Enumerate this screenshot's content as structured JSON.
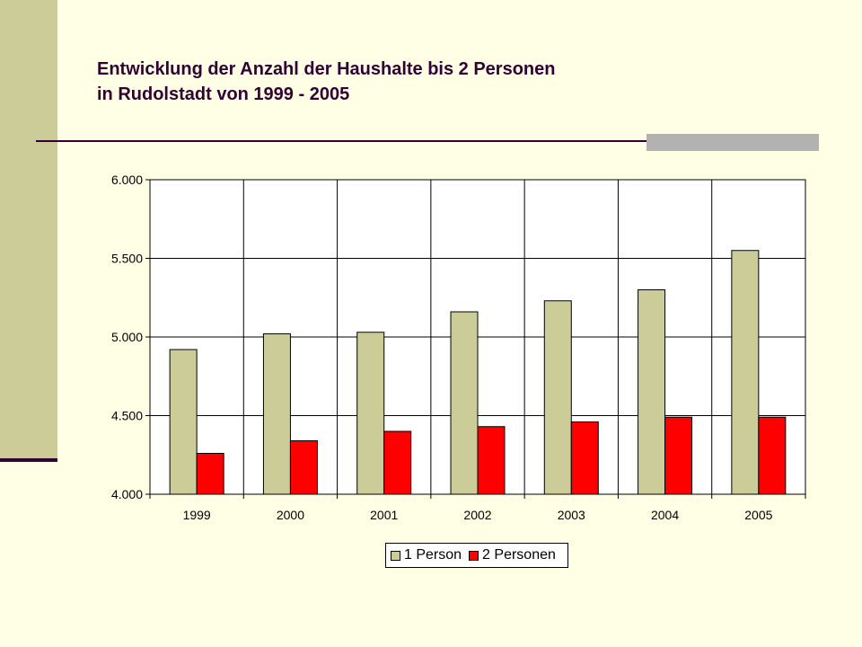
{
  "title": {
    "line1": "Entwicklung der Anzahl der Haushalte bis 2 Personen",
    "line2": "in Rudolstadt von 1999 - 2005"
  },
  "colors": {
    "background": "#FFFFE5",
    "sidebar": "#CCCC99",
    "accent": "#330033",
    "series1": "#CCCC99",
    "series2": "#FF0000"
  },
  "chart_data": {
    "type": "bar",
    "categories": [
      "1999",
      "2000",
      "2001",
      "2002",
      "2003",
      "2004",
      "2005"
    ],
    "series": [
      {
        "name": "1 Person",
        "values": [
          4920,
          5020,
          5030,
          5160,
          5230,
          5300,
          5550
        ]
      },
      {
        "name": "2 Personen",
        "values": [
          4260,
          4340,
          4400,
          4430,
          4460,
          4490,
          4490
        ]
      }
    ],
    "ylim": [
      4000,
      6000
    ],
    "yticks": [
      "4.000",
      "4.500",
      "5.000",
      "5.500",
      "6.000"
    ],
    "ytick_values": [
      4000,
      4500,
      5000,
      5500,
      6000
    ],
    "grid": true,
    "legend_position": "bottom"
  }
}
